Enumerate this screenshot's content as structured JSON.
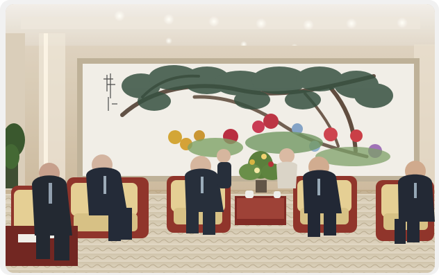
{
  "image": {
    "subject": "meeting-room-scene",
    "palette": {
      "ceiling": "#e7e1d7",
      "wall": "#d6cab5",
      "painting_bg": "#f1eee6",
      "painting_frame": "#b8a98f",
      "carpet": "#d8cab2",
      "chair_red": "#8f2c22",
      "chair_cushion": "#e4ce90",
      "suit_dark": "#1d2430",
      "skin": "#d5b39b",
      "flower_green": "#5a7d3b",
      "flower_red": "#b22a31",
      "flower_yellow": "#d6b13c"
    }
  }
}
